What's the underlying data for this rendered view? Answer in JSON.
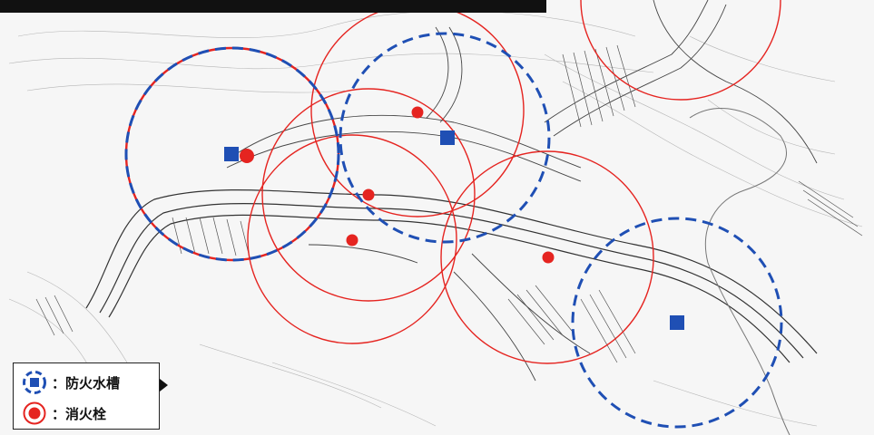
{
  "legend": {
    "water_tank": {
      "label": "：防火水槽",
      "color": "#1f4fb4"
    },
    "hydrant": {
      "label": "：消火栓",
      "color": "#e52420"
    }
  },
  "colors": {
    "water_tank": "#1f4fb4",
    "hydrant": "#e52420",
    "linework": "#555555",
    "background": "#f6f6f6"
  },
  "markers": {
    "water_tank_count": 3,
    "hydrant_count": 5
  }
}
